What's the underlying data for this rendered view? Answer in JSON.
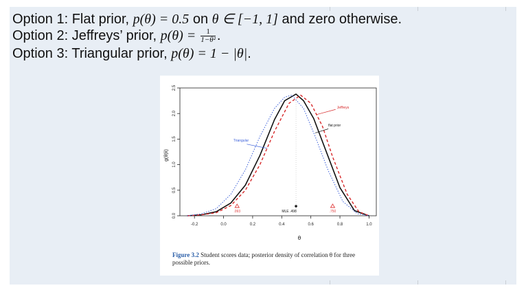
{
  "options": [
    {
      "lead": "Option 1: Flat prior, ",
      "math": "p(θ) = 0.5",
      "mid": " on ",
      "math2": "θ ∈ [−1, 1]",
      "tail": " and zero otherwise."
    },
    {
      "lead": "Option 2: Jeffreys’ prior, ",
      "math": "p(θ) = ",
      "frac_num": "1",
      "frac_den": "1−θ²",
      "tail": "."
    },
    {
      "lead": "Option 3: Triangular prior, ",
      "math": "p(θ) = 1 − |θ|",
      "tail": "."
    }
  ],
  "figure": {
    "caption_label": "Figure 3.2",
    "caption_text": "Student scores data; posterior density of correlation θ for three possible priors."
  },
  "chart_data": {
    "type": "line",
    "xlabel": "θ",
    "ylabel": "g(θ|x̂)",
    "xlim": [
      -0.3,
      1.05
    ],
    "ylim": [
      0,
      2.5
    ],
    "x_ticks": [
      "-0.2",
      "0.0",
      "0.2",
      "0.4",
      "0.6",
      "0.8",
      "1.0"
    ],
    "x_tick_values": [
      -0.2,
      0.0,
      0.2,
      0.4,
      0.6,
      0.8,
      1.0
    ],
    "y_ticks": [
      "0.0",
      "0.5",
      "1.0",
      "1.5",
      "2.0",
      "2.5"
    ],
    "y_tick_values": [
      0.0,
      0.5,
      1.0,
      1.5,
      2.0,
      2.5
    ],
    "grid": false,
    "colors": {
      "flat": "#111111",
      "jeffreys": "#d62728",
      "triangular": "#3a5fd9",
      "marker": "#e04040"
    },
    "series": [
      {
        "key": "flat",
        "name": "flat prior",
        "style": "solid",
        "x": [
          -0.25,
          -0.15,
          -0.05,
          0.05,
          0.15,
          0.25,
          0.35,
          0.42,
          0.498,
          0.55,
          0.62,
          0.7,
          0.8,
          0.9,
          1.0
        ],
        "y": [
          0.0,
          0.02,
          0.08,
          0.25,
          0.6,
          1.18,
          1.88,
          2.25,
          2.38,
          2.25,
          1.9,
          1.3,
          0.55,
          0.1,
          0.0
        ]
      },
      {
        "key": "jeffreys",
        "name": "Jeffreys",
        "style": "dashed",
        "x": [
          -0.25,
          -0.15,
          -0.05,
          0.05,
          0.15,
          0.25,
          0.35,
          0.45,
          0.53,
          0.6,
          0.68,
          0.75,
          0.85,
          0.93,
          1.0
        ],
        "y": [
          0.0,
          0.02,
          0.06,
          0.2,
          0.5,
          1.0,
          1.65,
          2.2,
          2.36,
          2.2,
          1.75,
          1.15,
          0.42,
          0.08,
          0.0
        ]
      },
      {
        "key": "triangular",
        "name": "Triangular",
        "style": "dotted",
        "x": [
          -0.25,
          -0.15,
          -0.05,
          0.05,
          0.15,
          0.25,
          0.35,
          0.42,
          0.47,
          0.55,
          0.63,
          0.72,
          0.82,
          0.92,
          1.0
        ],
        "y": [
          0.0,
          0.04,
          0.14,
          0.42,
          0.9,
          1.55,
          2.1,
          2.32,
          2.36,
          2.1,
          1.55,
          0.88,
          0.28,
          0.04,
          0.0
        ]
      }
    ],
    "markers": [
      {
        "label": ".093",
        "x": 0.093,
        "type": "triangle"
      },
      {
        "label": ".750",
        "x": 0.75,
        "type": "triangle"
      },
      {
        "label": "MLE .498",
        "x": 0.498,
        "type": "dot"
      }
    ],
    "annotations": [
      {
        "text": "Jeffreys",
        "series": "jeffreys"
      },
      {
        "text": "flat prior",
        "series": "flat"
      },
      {
        "text": "Triangular",
        "series": "triangular"
      }
    ]
  }
}
